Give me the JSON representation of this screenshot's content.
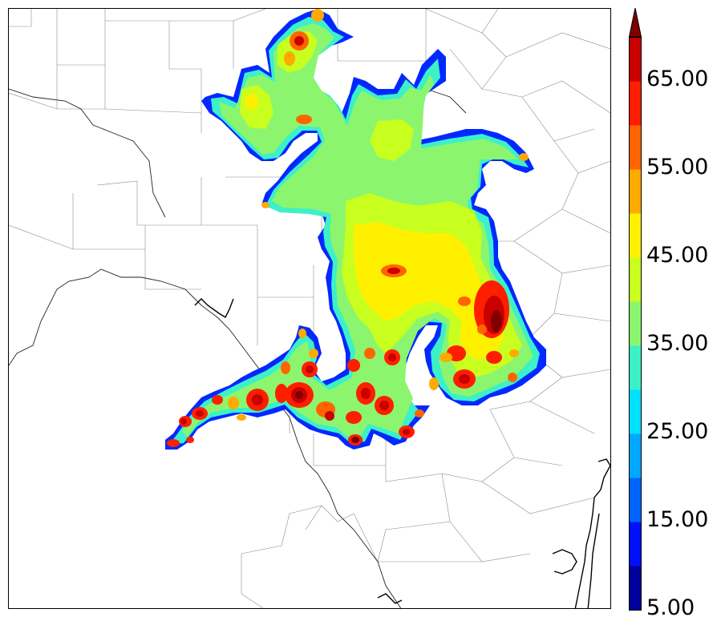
{
  "colorbar": {
    "tick_labels": [
      "65.00",
      "55.00",
      "45.00",
      "35.00",
      "25.00",
      "15.00",
      "5.00"
    ],
    "colors": [
      "#00009a",
      "#0010ff",
      "#0064ff",
      "#00a8ff",
      "#00e0ff",
      "#3cf0c8",
      "#8cf56e",
      "#c8ff1e",
      "#fff000",
      "#ffaa00",
      "#ff6400",
      "#ff1e00",
      "#c80000",
      "#800000"
    ],
    "extend": "max"
  },
  "map": {
    "coastline_color": "#000000",
    "county_line_color": "#888888",
    "field_levels": [
      "#00009a",
      "#0064ff",
      "#3cf0c8",
      "#8cf56e",
      "#c8ff1e",
      "#fff000",
      "#ffaa00",
      "#ff6400",
      "#ff1e00",
      "#c80000",
      "#800000"
    ]
  }
}
